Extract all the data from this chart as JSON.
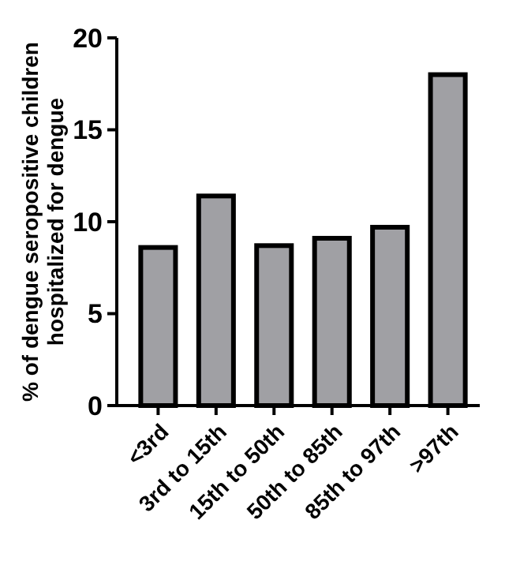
{
  "chart_data": {
    "type": "bar",
    "ylabel": "% of dengue seropositive children\nhospitalized for dengue",
    "categories": [
      "<3rd",
      "3rd to 15th",
      "15th to 50th",
      "50th to 85th",
      "85th to 97th",
      ">97th"
    ],
    "values": [
      8.6,
      11.4,
      8.7,
      9.1,
      9.7,
      18.0
    ],
    "color": "#a0a0a4",
    "ylim": [
      0,
      20
    ],
    "yticks": [
      0,
      5,
      10,
      15,
      20
    ],
    "grid": false
  }
}
